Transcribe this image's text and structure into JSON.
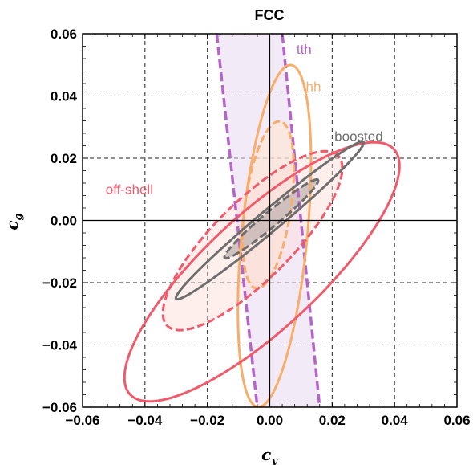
{
  "chart_data": {
    "type": "contour",
    "title": "FCC",
    "xlabel": "c",
    "xlabel_sub": "y",
    "ylabel": "c",
    "ylabel_sub": "g",
    "xlim": [
      -0.06,
      0.06
    ],
    "ylim": [
      -0.06,
      0.06
    ],
    "xticks": [
      -0.06,
      -0.04,
      -0.02,
      0.0,
      0.02,
      0.04,
      0.06
    ],
    "yticks": [
      -0.06,
      -0.04,
      -0.02,
      0.0,
      0.02,
      0.04,
      0.06
    ],
    "xtick_labels": [
      "−0.06",
      "−0.04",
      "−0.02",
      "0.00",
      "0.02",
      "0.04",
      "0.06"
    ],
    "ytick_labels": [
      "−0.06",
      "−0.04",
      "−0.02",
      "0.00",
      "0.02",
      "0.04",
      "0.06"
    ],
    "grid": "dashed",
    "colors": {
      "tth": "#b565c8",
      "tth_fill": "#ead8f2",
      "hh": "#f8ad6a",
      "hh_fill": "#fde3cc",
      "offshell": "#f05a6a",
      "offshell_fill": "#fcdcd8",
      "boosted": "#6e6e6e",
      "boosted_fill": "#bfb0b0"
    },
    "series": [
      {
        "name": "tth",
        "shape": "band",
        "edges": [
          {
            "style": "dashed",
            "points": [
              [
                -0.017,
                0.06
              ],
              [
                -0.004,
                -0.06
              ]
            ]
          },
          {
            "style": "dashed",
            "points": [
              [
                0.004,
                0.06
              ],
              [
                0.016,
                -0.06
              ]
            ]
          }
        ],
        "label_at": [
          0.011,
          0.0535
        ]
      },
      {
        "name": "hh",
        "shape": "ellipses",
        "label_at": [
          0.014,
          0.0415
        ],
        "contours": [
          {
            "style": "solid",
            "center": [
              0.0015,
              -0.005
            ],
            "semi_axes": [
              0.0552,
              0.0105
            ],
            "angle_deg": 84.5
          },
          {
            "style": "dashed",
            "center": [
              -0.0005,
              0.005
            ],
            "semi_axes": [
              0.0271,
              0.0074
            ],
            "angle_deg": 82.0
          }
        ]
      },
      {
        "name": "off-shell",
        "shape": "ellipses",
        "label_at": [
          -0.045,
          0.0085
        ],
        "contours": [
          {
            "style": "solid",
            "center": [
              -0.0025,
              -0.0165
            ],
            "semi_axes": [
              0.0578,
              0.0183
            ],
            "angle_deg": 43.0
          },
          {
            "style": "dashed",
            "center": [
              -0.0055,
              -0.0065
            ],
            "semi_axes": [
              0.0387,
              0.0125
            ],
            "angle_deg": 45.0
          }
        ]
      },
      {
        "name": "boosted",
        "shape": "ellipses",
        "label_at": [
          0.0285,
          0.0255
        ],
        "contours": [
          {
            "style": "solid",
            "center": [
              0.0,
              0.0
            ],
            "semi_axes": [
              0.0392,
              0.0034
            ],
            "angle_deg": 40.0
          },
          {
            "style": "dashed",
            "center": [
              0.0005,
              0.0005
            ],
            "semi_axes": [
              0.0195,
              0.0024
            ],
            "angle_deg": 40.0
          }
        ]
      }
    ]
  }
}
